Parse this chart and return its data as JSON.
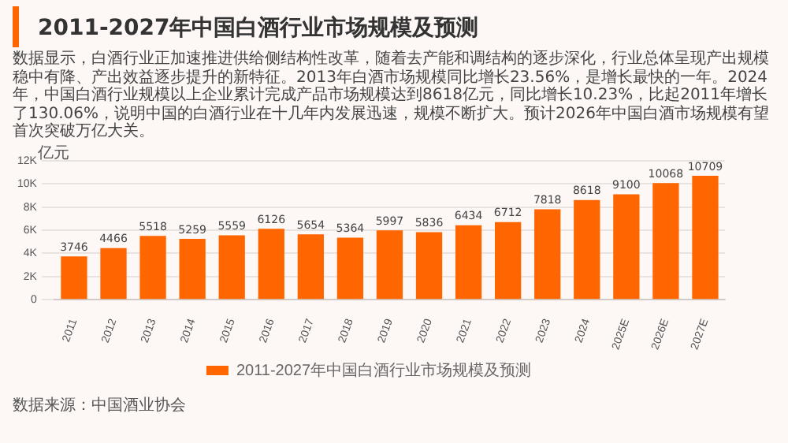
{
  "chart_data": {
    "type": "bar",
    "title": "2011-2027年中国白酒行业市场规模及预测",
    "subtitle": "数据显示，白酒行业正加速推进供给侧结构性改革，随着去产能和调结构的逐步深化，行业总体呈现产出规模稳中有降、产出效益逐步提升的新特征。2013年白酒市场规模同比增长23.56%，是增长最快的一年。2024年，中国白酒行业规模以上企业累计完成产品市场规模达到8618亿元，同比增长10.23%，比起2011年增长了130.06%，说明中国的白酒行业在十几年内发展迅速，规模不断扩大。预计2026年中国白酒市场规模有望首次突破万亿大关。",
    "ylabel": "亿元",
    "categories": [
      "2011",
      "2012",
      "2013",
      "2014",
      "2015",
      "2016",
      "2017",
      "2018",
      "2019",
      "2020",
      "2021",
      "2022",
      "2023",
      "2024",
      "2025E",
      "2026E",
      "2027E"
    ],
    "series": [
      {
        "name": "2011-2027年中国白酒行业市场规模及预测",
        "color": "#ff6600",
        "values": [
          3746,
          4466,
          5518,
          5259,
          5559,
          6126,
          5654,
          5364,
          5997,
          5836,
          6434,
          6712,
          7818,
          8618,
          9100,
          10068,
          10709
        ]
      }
    ],
    "ylim": [
      0,
      12000
    ],
    "yticks": [
      {
        "value": 0,
        "label": "0"
      },
      {
        "value": 2000,
        "label": "2K"
      },
      {
        "value": 4000,
        "label": "4K"
      },
      {
        "value": 6000,
        "label": "6K"
      },
      {
        "value": 8000,
        "label": "8K"
      },
      {
        "value": 10000,
        "label": "10K"
      },
      {
        "value": 12000,
        "label": "12K"
      }
    ],
    "grid": "y",
    "legend": "bottom",
    "data_labels": true,
    "annotations": [
      "数据来源：中国酒业协会"
    ]
  }
}
